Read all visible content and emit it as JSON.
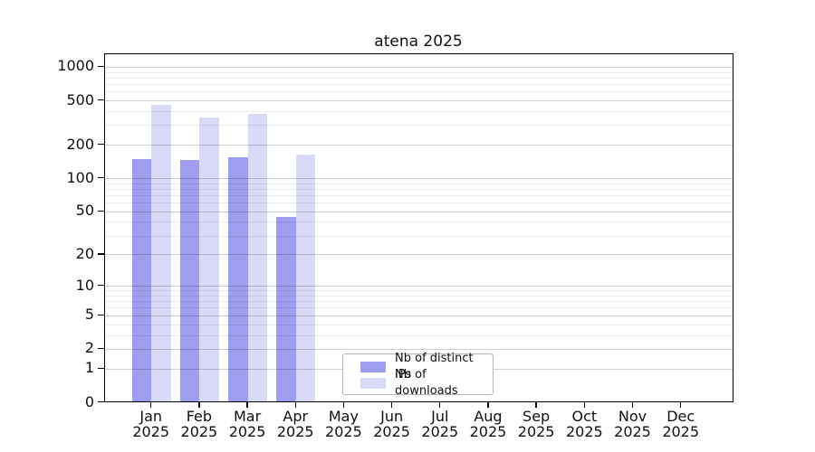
{
  "chart_data": {
    "type": "bar",
    "title": "atena 2025",
    "x_months": [
      "Jan",
      "Feb",
      "Mar",
      "Apr",
      "May",
      "Jun",
      "Jul",
      "Aug",
      "Sep",
      "Oct",
      "Nov",
      "Dec"
    ],
    "x_year": "2025",
    "series": [
      {
        "name": "Nb of distinct IPs",
        "color": "#9e9ef0",
        "values": [
          145,
          143,
          151,
          43,
          0,
          0,
          0,
          0,
          0,
          0,
          0,
          0
        ]
      },
      {
        "name": "Nb of downloads",
        "color": "#d9d9f8",
        "values": [
          445,
          340,
          368,
          158,
          0,
          0,
          0,
          0,
          0,
          0,
          0,
          0
        ]
      }
    ],
    "y_scale": "log10(1+v)",
    "y_ticks": [
      0,
      1,
      2,
      5,
      10,
      20,
      50,
      100,
      200,
      500,
      1000
    ],
    "y_minor_gridlines": [
      3,
      4,
      6,
      7,
      8,
      9,
      30,
      40,
      60,
      70,
      80,
      90,
      300,
      400,
      600,
      700,
      800,
      900
    ],
    "ylim_top_value": 1278,
    "grid": "horizontal",
    "legend_position": "bottom-center-inside",
    "axis_color": "#000000",
    "tick_label_color": "#111111",
    "background_color": "#ffffff"
  }
}
